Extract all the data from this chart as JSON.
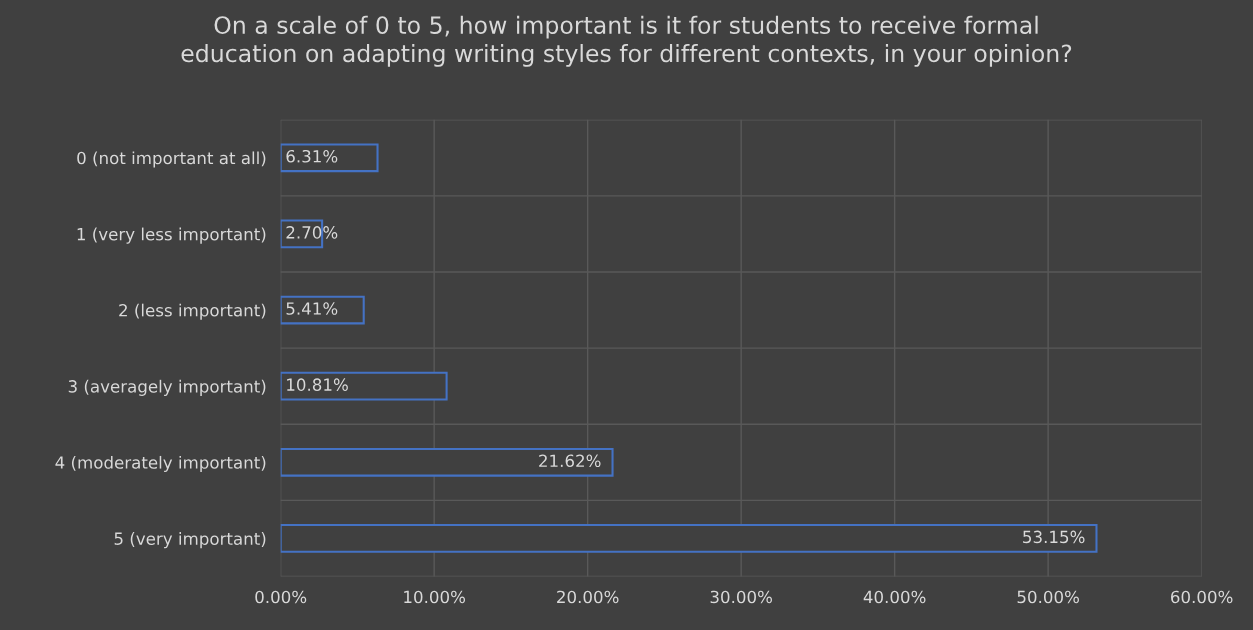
{
  "chart_data": {
    "type": "bar",
    "orientation": "horizontal",
    "title": "On a scale of 0 to 5, how important is it for students to receive formal\neducation on adapting writing styles for different contexts, in your opinion?",
    "categories": [
      "0 (not important at all)",
      "1 (very less important)",
      "2 (less important)",
      "3 (averagely important)",
      "4 (moderately important)",
      "5 (very important)"
    ],
    "values": [
      6.31,
      2.7,
      5.41,
      10.81,
      21.62,
      53.15
    ],
    "value_labels": [
      "6.31%",
      "2.70%",
      "5.41%",
      "10.81%",
      "21.62%",
      "53.15%"
    ],
    "color": "#4472c4",
    "xlim": [
      0,
      60
    ],
    "xticks": [
      {
        "value": 0,
        "label": "0.00%"
      },
      {
        "value": 10,
        "label": "10.00%"
      },
      {
        "value": 20,
        "label": "20.00%"
      },
      {
        "value": 30,
        "label": "30.00%"
      },
      {
        "value": 40,
        "label": "40.00%"
      },
      {
        "value": 50,
        "label": "50.00%"
      },
      {
        "value": 60,
        "label": "60.00%"
      }
    ],
    "grid": true,
    "legend": false
  }
}
